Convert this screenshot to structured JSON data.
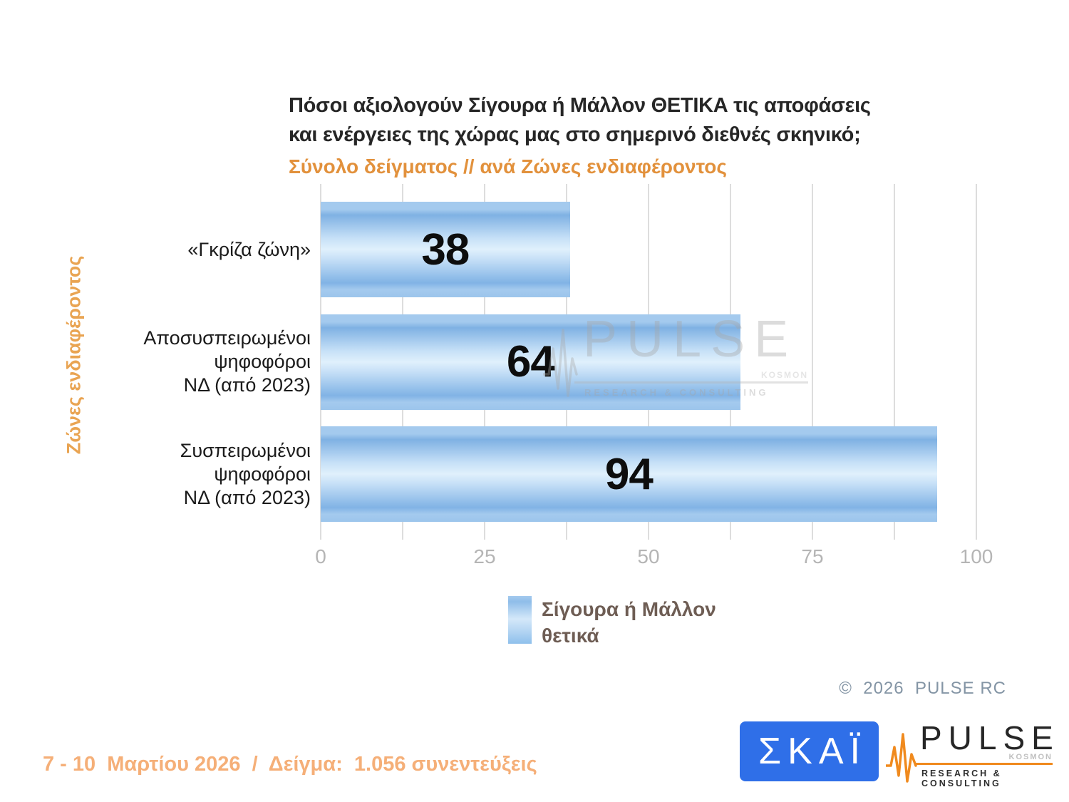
{
  "header": {
    "title_line1": "Πόσοι αξιολογούν Σίγουρα ή Μάλλον ΘΕΤΙΚΑ τις αποφάσεις",
    "title_line2": "και ενέργειες της χώρας μας στο σημερινό διεθνές σκηνικό;",
    "subtitle": "Σύνολο δείγματος // ανά Ζώνες ενδιαφέροντος"
  },
  "chart_data": {
    "type": "bar",
    "orientation": "horizontal",
    "title": "Πόσοι αξιολογούν Σίγουρα ή Μάλλον ΘΕΤΙΚΑ τις αποφάσεις και ενέργειες της χώρας μας στο σημερινό διεθνές σκηνικό;",
    "subtitle": "Σύνολο δείγματος // ανά Ζώνες ενδιαφέροντος",
    "ylabel": "Ζώνες ενδιαφέροντος",
    "categories": [
      "«Γκρίζα ζώνη»",
      "Αποσυσπειρωμένοι\nψηφοφόροι\nΝΔ (από 2023)",
      "Συσπειρωμένοι\nψηφοφόροι\nΝΔ (από 2023)"
    ],
    "series": [
      {
        "name": "Σίγουρα ή Μάλλον θετικά",
        "values": [
          38,
          64,
          94
        ]
      }
    ],
    "xlim": [
      0,
      100
    ],
    "x_ticks": [
      0,
      25,
      50,
      75,
      100
    ],
    "grid_step": 12.5,
    "grid": true,
    "legend_position": "bottom",
    "bar_color": "#8FBDE9",
    "value_label_color": "#0d0d0d"
  },
  "legend": {
    "label": "Σίγουρα ή Μάλλον\nθετικά"
  },
  "watermark": {
    "name": "PULSE",
    "brand": "KOSMON",
    "tagline": "RESEARCH & CONSULTING"
  },
  "copyright": "©  2026  PULSE RC",
  "logos": {
    "skai_text": "ΣΚΑΪ",
    "skai_blue": "#2F6FE8",
    "pulse_name": "PULSE",
    "pulse_brand": "KOSMON",
    "pulse_tagline": "RESEARCH & CONSULTING",
    "pulse_orange": "#F08A1E"
  },
  "footer": "7 - 10  Μαρτίου 2026  /  Δείγμα:  1.056 συνεντεύξεις",
  "colors": {
    "title_text": "#262626",
    "subtitle_orange": "#E2913C",
    "axis_label_orange": "#E9A452",
    "footer_orange": "#F5AF78",
    "gridline": "#DDDDDD",
    "tick_text": "#B5B5B5",
    "legend_text": "#6E5D54",
    "copyright_text": "#8495A5"
  }
}
